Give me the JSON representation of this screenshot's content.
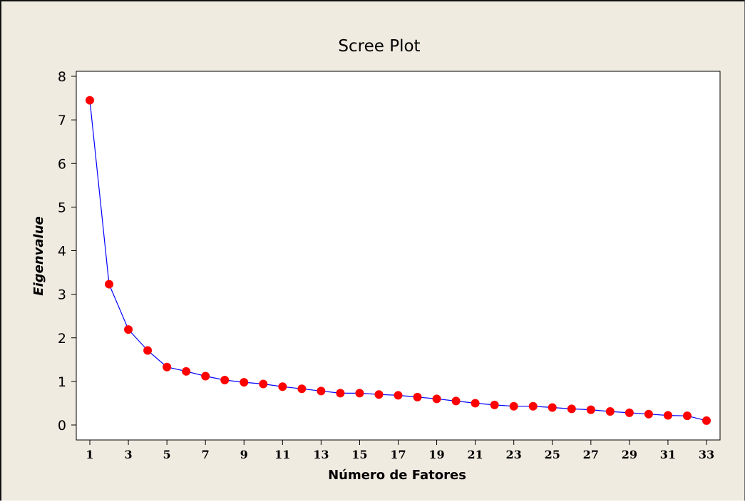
{
  "chart_data": {
    "type": "line",
    "title": "Scree Plot",
    "xlabel": "Número de Fatores",
    "ylabel": "Eigenvalue",
    "x": [
      1,
      2,
      3,
      4,
      5,
      6,
      7,
      8,
      9,
      10,
      11,
      12,
      13,
      14,
      15,
      16,
      17,
      18,
      19,
      20,
      21,
      22,
      23,
      24,
      25,
      26,
      27,
      28,
      29,
      30,
      31,
      32,
      33
    ],
    "series": [
      {
        "values": [
          7.45,
          3.23,
          2.19,
          1.71,
          1.33,
          1.23,
          1.12,
          1.03,
          0.98,
          0.94,
          0.88,
          0.83,
          0.78,
          0.73,
          0.73,
          0.7,
          0.68,
          0.64,
          0.6,
          0.55,
          0.5,
          0.46,
          0.43,
          0.43,
          0.4,
          0.37,
          0.35,
          0.31,
          0.28,
          0.25,
          0.22,
          0.21,
          0.1
        ]
      }
    ],
    "xticks": [
      "1",
      "3",
      "5",
      "7",
      "9",
      "11",
      "13",
      "15",
      "17",
      "19",
      "21",
      "23",
      "25",
      "27",
      "29",
      "31",
      "33"
    ],
    "yticks": [
      "0",
      "1",
      "2",
      "3",
      "4",
      "5",
      "6",
      "7",
      "8"
    ],
    "xlim": [
      1,
      33
    ],
    "ylim": [
      0,
      8
    ],
    "grid": false,
    "legend": "none",
    "colors": {
      "line": "#0000ff",
      "marker": "#ff0000",
      "background": "#f0ebe1",
      "plot_area": "#ffffff"
    },
    "marker_icon": "filled-circle-marker"
  }
}
